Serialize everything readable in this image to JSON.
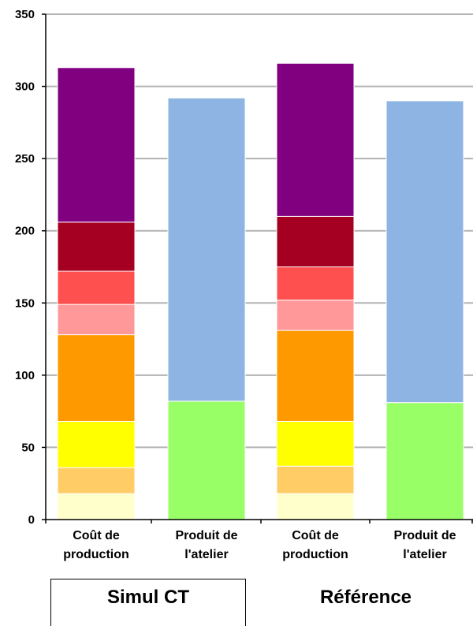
{
  "chart_data": {
    "type": "bar",
    "stacked": true,
    "ylim": [
      0,
      350
    ],
    "yticks": [
      0,
      50,
      100,
      150,
      200,
      250,
      300,
      350
    ],
    "grid": "horizontal",
    "categories": [
      {
        "lines": [
          "Coût de",
          "production"
        ]
      },
      {
        "lines": [
          "Produit de",
          "l'atelier"
        ]
      },
      {
        "lines": [
          "Coût de",
          "production"
        ]
      },
      {
        "lines": [
          "Produit de",
          "l'atelier"
        ]
      }
    ],
    "groups": [
      {
        "label": "Simul CT",
        "boxed": true
      },
      {
        "label": "Référence",
        "boxed": false
      }
    ],
    "bars": [
      {
        "segments": [
          {
            "value": 18,
            "color": "#FFFFCC"
          },
          {
            "value": 18,
            "color": "#FFCC66"
          },
          {
            "value": 32,
            "color": "#FFFF00"
          },
          {
            "value": 60,
            "color": "#FF9900"
          },
          {
            "value": 21,
            "color": "#FF9999"
          },
          {
            "value": 23,
            "color": "#FF5050"
          },
          {
            "value": 34,
            "color": "#A50021"
          },
          {
            "value": 107,
            "color": "#800080"
          }
        ]
      },
      {
        "segments": [
          {
            "value": 82,
            "color": "#99FF66"
          },
          {
            "value": 210,
            "color": "#8DB4E2"
          }
        ]
      },
      {
        "segments": [
          {
            "value": 18,
            "color": "#FFFFCC"
          },
          {
            "value": 19,
            "color": "#FFCC66"
          },
          {
            "value": 31,
            "color": "#FFFF00"
          },
          {
            "value": 63,
            "color": "#FF9900"
          },
          {
            "value": 21,
            "color": "#FF9999"
          },
          {
            "value": 23,
            "color": "#FF5050"
          },
          {
            "value": 35,
            "color": "#A50021"
          },
          {
            "value": 106,
            "color": "#800080"
          }
        ]
      },
      {
        "segments": [
          {
            "value": 81,
            "color": "#99FF66"
          },
          {
            "value": 209,
            "color": "#8DB4E2"
          }
        ]
      }
    ]
  }
}
